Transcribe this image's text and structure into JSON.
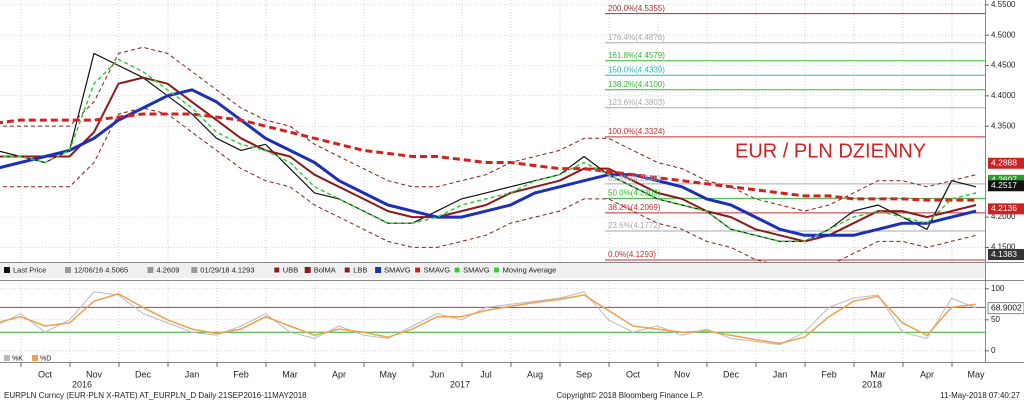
{
  "chart_data": [
    {
      "type": "line",
      "title": "EUR / PLN DZIENNY",
      "categories": [
        null,
        null,
        "Oct",
        null,
        "Nov",
        null,
        "Dec",
        null,
        "Jan",
        null,
        "Feb",
        null,
        "Mar",
        null,
        "Apr",
        null,
        "May",
        null,
        "Jun",
        null,
        "Jul",
        null,
        "Aug",
        null,
        "Sep",
        null,
        "Oct",
        null,
        "Nov",
        null,
        "Dec",
        null,
        "Jan",
        null,
        "Feb",
        null,
        "Mar",
        null,
        "Apr",
        null,
        "May"
      ],
      "year_labels": [
        "2016",
        "2017",
        "2018"
      ],
      "series": [
        {
          "name": "Last Price",
          "color": "#111111",
          "width": 1.2,
          "dash": false,
          "values": [
            4.31,
            4.3,
            4.29,
            4.31,
            4.47,
            4.45,
            4.43,
            4.4,
            4.37,
            4.33,
            4.31,
            4.32,
            4.28,
            4.24,
            4.23,
            4.21,
            4.19,
            4.19,
            4.21,
            4.23,
            4.24,
            4.25,
            4.26,
            4.27,
            4.3,
            4.27,
            4.25,
            4.23,
            4.22,
            4.21,
            4.18,
            4.17,
            4.16,
            4.16,
            4.18,
            4.21,
            4.22,
            4.2,
            4.18,
            4.26,
            4.25
          ]
        },
        {
          "name": "UBB",
          "color": "#8b1a1a",
          "width": 1,
          "dash": true,
          "values": [
            4.35,
            4.35,
            4.35,
            4.35,
            4.39,
            4.47,
            4.48,
            4.47,
            4.44,
            4.41,
            4.38,
            4.36,
            4.35,
            4.32,
            4.3,
            4.28,
            4.26,
            4.25,
            4.25,
            4.26,
            4.27,
            4.29,
            4.3,
            4.31,
            4.33,
            4.33,
            4.31,
            4.29,
            4.28,
            4.26,
            4.25,
            4.23,
            4.22,
            4.21,
            4.22,
            4.24,
            4.26,
            4.26,
            4.25,
            4.26,
            4.27
          ]
        },
        {
          "name": "BolMA",
          "color": "#8b1a1a",
          "width": 2,
          "dash": false,
          "values": [
            4.3,
            4.3,
            4.3,
            4.3,
            4.34,
            4.42,
            4.43,
            4.42,
            4.39,
            4.36,
            4.33,
            4.31,
            4.3,
            4.27,
            4.25,
            4.23,
            4.21,
            4.2,
            4.2,
            4.21,
            4.22,
            4.24,
            4.25,
            4.26,
            4.28,
            4.28,
            4.26,
            4.24,
            4.23,
            4.21,
            4.2,
            4.18,
            4.17,
            4.16,
            4.17,
            4.19,
            4.21,
            4.21,
            4.2,
            4.21,
            4.22
          ]
        },
        {
          "name": "LBB",
          "color": "#8b1a1a",
          "width": 1,
          "dash": true,
          "values": [
            4.25,
            4.25,
            4.25,
            4.25,
            4.29,
            4.37,
            4.38,
            4.37,
            4.34,
            4.31,
            4.28,
            4.26,
            4.25,
            4.22,
            4.2,
            4.18,
            4.16,
            4.15,
            4.15,
            4.16,
            4.17,
            4.19,
            4.2,
            4.21,
            4.23,
            4.23,
            4.21,
            4.19,
            4.18,
            4.16,
            4.15,
            4.13,
            4.12,
            4.11,
            4.12,
            4.14,
            4.16,
            4.16,
            4.15,
            4.16,
            4.17
          ]
        },
        {
          "name": "SMAVG",
          "color": "#1c2fb8",
          "width": 3,
          "dash": false,
          "values": [
            4.28,
            4.29,
            4.3,
            4.31,
            4.33,
            4.36,
            4.38,
            4.4,
            4.41,
            4.39,
            4.36,
            4.33,
            4.31,
            4.29,
            4.26,
            4.24,
            4.22,
            4.21,
            4.2,
            4.2,
            4.21,
            4.22,
            4.24,
            4.25,
            4.26,
            4.27,
            4.27,
            4.26,
            4.25,
            4.23,
            4.22,
            4.2,
            4.18,
            4.17,
            4.17,
            4.17,
            4.18,
            4.19,
            4.19,
            4.2,
            4.21
          ]
        },
        {
          "name": "SMAVG",
          "color": "#d42020",
          "width": 3,
          "dash": true,
          "values": [
            4.355,
            4.36,
            4.36,
            4.36,
            4.36,
            4.365,
            4.37,
            4.37,
            4.37,
            4.365,
            4.36,
            4.35,
            4.34,
            4.33,
            4.32,
            4.31,
            4.305,
            4.3,
            4.3,
            4.295,
            4.29,
            4.29,
            4.285,
            4.28,
            4.28,
            4.275,
            4.27,
            4.265,
            4.26,
            4.255,
            4.25,
            4.245,
            4.24,
            4.235,
            4.235,
            4.23,
            4.23,
            4.23,
            4.228,
            4.228,
            4.228
          ]
        },
        {
          "name": "SMAVG",
          "color": "#33cc33",
          "width": 1.5,
          "dash": true,
          "values": [
            4.3,
            4.3,
            4.29,
            4.31,
            4.42,
            4.46,
            4.44,
            4.41,
            4.38,
            4.34,
            4.32,
            4.31,
            4.29,
            4.25,
            4.23,
            4.21,
            4.19,
            4.19,
            4.2,
            4.22,
            4.23,
            4.24,
            4.26,
            4.27,
            4.29,
            4.27,
            4.25,
            4.23,
            4.22,
            4.21,
            4.18,
            4.17,
            4.16,
            4.16,
            4.18,
            4.2,
            4.21,
            4.2,
            4.19,
            4.23,
            4.24
          ]
        }
      ],
      "legend_extra": "Moving Average",
      "legend_stats": [
        "12/06/16 4.5065",
        "4.2609",
        "01/29/18 4.1293"
      ],
      "ylim": [
        4.126,
        4.558
      ],
      "yticks": [
        {
          "value": 4.55,
          "label": "4.5500"
        },
        {
          "value": 4.5,
          "label": "4.5000"
        },
        {
          "value": 4.45,
          "label": "4.4500"
        },
        {
          "value": 4.4,
          "label": "4.4000"
        },
        {
          "value": 4.35,
          "label": "4.3500"
        },
        {
          "value": 4.2,
          "label": "4.2000"
        },
        {
          "value": 4.15,
          "label": "4.1500"
        }
      ],
      "grid": true,
      "fib_levels": [
        {
          "value": 4.5355,
          "label": "200.0%(4.5355)",
          "color": "#a03030"
        },
        {
          "value": 4.4876,
          "label": "176.4%(4.4876)",
          "color": "#aaaaaa"
        },
        {
          "value": 4.4579,
          "label": "161.8%(4.4579)",
          "color": "#33bb33"
        },
        {
          "value": 4.4339,
          "label": "150.0%(4.4339)",
          "color": "#22bbcc"
        },
        {
          "value": 4.41,
          "label": "138.2%(4.4100)",
          "color": "#33bb33"
        },
        {
          "value": 4.3803,
          "label": "123.6%(4.3803)",
          "color": "#aaaaaa"
        },
        {
          "value": 4.3324,
          "label": "100.0%(4.3324)",
          "color": "#c03030"
        },
        {
          "value": 4.2548,
          "label": "61.8%(4.2548)",
          "color": "#aaaaaa"
        },
        {
          "value": 4.2309,
          "label": "50.0%(4.2309)",
          "color": "#33bb33"
        },
        {
          "value": 4.2069,
          "label": "38.2%(4.2069)",
          "color": "#c03030"
        },
        {
          "value": 4.1772,
          "label": "23.6%(4.1772)",
          "color": "#aaaaaa"
        },
        {
          "value": 4.1293,
          "label": "0.0%(4.1293)",
          "color": "#c03030"
        }
      ],
      "price_tags": [
        {
          "value": 4.2607,
          "label": "4.2607",
          "color": "#2f9b2f"
        },
        {
          "value": 4.2888,
          "label": "4.2888",
          "color": "#cc2222"
        },
        {
          "value": 4.2517,
          "label": "4.2517",
          "color": "#111111"
        },
        {
          "value": 4.2136,
          "label": "4.2136",
          "color": "#cc2222"
        },
        {
          "value": 4.1383,
          "label": "4.1383",
          "color": "#333333"
        }
      ]
    },
    {
      "type": "line",
      "series": [
        {
          "name": "%K",
          "color": "#bbbbbb",
          "width": 1,
          "dash": false,
          "values": [
            40,
            60,
            30,
            50,
            95,
            90,
            60,
            45,
            30,
            25,
            40,
            60,
            30,
            20,
            40,
            25,
            20,
            40,
            60,
            50,
            70,
            75,
            80,
            85,
            95,
            50,
            30,
            40,
            25,
            35,
            20,
            15,
            10,
            30,
            70,
            85,
            90,
            30,
            20,
            85,
            69
          ]
        },
        {
          "name": "%D",
          "color": "#f0a050",
          "width": 1.5,
          "dash": false,
          "values": [
            45,
            55,
            40,
            45,
            80,
            92,
            70,
            50,
            35,
            28,
            35,
            55,
            40,
            25,
            35,
            30,
            22,
            35,
            55,
            55,
            65,
            72,
            78,
            83,
            90,
            65,
            40,
            35,
            30,
            32,
            25,
            18,
            12,
            22,
            55,
            80,
            88,
            45,
            25,
            70,
            75
          ]
        }
      ],
      "ylim": [
        -18,
        111
      ],
      "yticks": [
        100,
        50,
        0
      ],
      "grid": true,
      "hlines": [
        {
          "value": 70,
          "color": "#cc3333"
        },
        {
          "value": 30,
          "color": "#33aa33"
        }
      ],
      "price_tags": [
        {
          "value": 68.9002,
          "label": "68.9002",
          "color": "#ffffff"
        }
      ]
    }
  ],
  "footer": {
    "left": "EURPLN Curncy (EUR-PLN X-RATE) AT_EURPLN_D  Daily 21SEP2016-11MAY2018",
    "center": "Copyright© 2018 Bloomberg Finance L.P.",
    "right": "11-May-2018 07:40:27"
  }
}
